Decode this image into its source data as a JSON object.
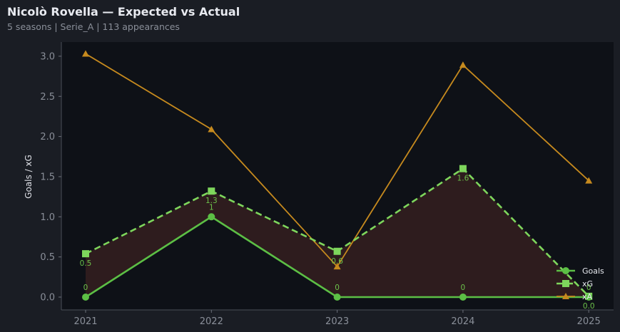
{
  "header": {
    "title": "Nicolò Rovella — Expected vs Actual",
    "subtitle": "5 seasons | Serie_A | 113 appearances"
  },
  "colors": {
    "background": "#1a1d24",
    "plot_background": "#0e1117",
    "goals": "#5cbf45",
    "xg": "#7ed65c",
    "xa": "#c68a1e",
    "fill": "#2e1c1e"
  },
  "chart_data": {
    "type": "line",
    "title": "Nicolò Rovella — Expected vs Actual",
    "subtitle": "5 seasons | Serie_A | 113 appearances",
    "xlabel": "",
    "ylabel": "Goals / xG",
    "categories": [
      "2021",
      "2022",
      "2023",
      "2024",
      "2025"
    ],
    "yticks": [
      "0.0",
      "0.5",
      "1.0",
      "1.5",
      "2.0",
      "2.5",
      "3.0"
    ],
    "ylim": [
      -0.15,
      3.2
    ],
    "grid": false,
    "legend_position": "lower right",
    "series": [
      {
        "name": "Goals",
        "values": [
          0,
          1,
          0,
          0,
          0
        ],
        "style": "solid",
        "marker": "circle",
        "labels": [
          "0",
          "1",
          "0",
          "0",
          "0"
        ]
      },
      {
        "name": "xG",
        "values": [
          0.54,
          1.32,
          0.57,
          1.6,
          0.01
        ],
        "style": "dashed",
        "marker": "square",
        "labels": [
          "0.5",
          "1.3",
          "0.6",
          "1.6",
          "0.0"
        ]
      },
      {
        "name": "xA",
        "values": [
          3.03,
          2.09,
          0.38,
          2.89,
          1.45
        ],
        "style": "solid",
        "marker": "triangle"
      }
    ],
    "annotations": [
      "shaded region between Goals and xG"
    ]
  }
}
